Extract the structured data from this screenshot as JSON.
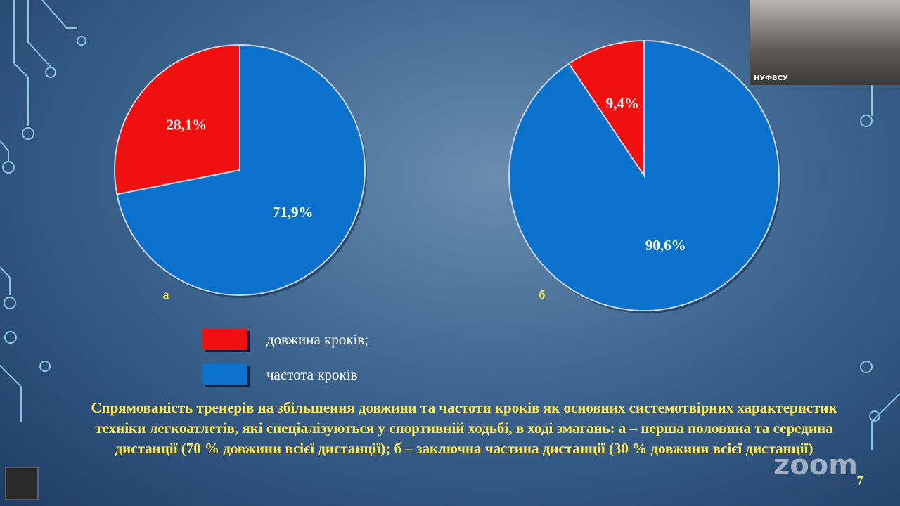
{
  "chart_data": [
    {
      "type": "pie",
      "label": "а",
      "values": [
        28.1,
        71.9
      ],
      "value_labels": [
        "28,1%",
        "71,9%"
      ]
    },
    {
      "type": "pie",
      "label": "б",
      "values": [
        9.4,
        90.6
      ],
      "value_labels": [
        "9,4%",
        "90,6%"
      ]
    }
  ],
  "legend": [
    {
      "name": "довжина кроків;",
      "color": "#f01010"
    },
    {
      "name": "частота кроків",
      "color": "#0a72cc"
    }
  ],
  "caption": "Спрямованість тренерів на  збільшення довжини та частоти кроків як основних системотвірних  характеристик техніки легкоатлетів, які спеціалізуються у спортивній ходьбі, в ході змагань: а – перша половина та середина дистанції (70 % довжини всієї дистанції); б – заключна частина дистанції (30 % довжини всієї дистанції)",
  "slide_number": "7",
  "video_label": "НУФВСУ",
  "watermark": "zoom"
}
